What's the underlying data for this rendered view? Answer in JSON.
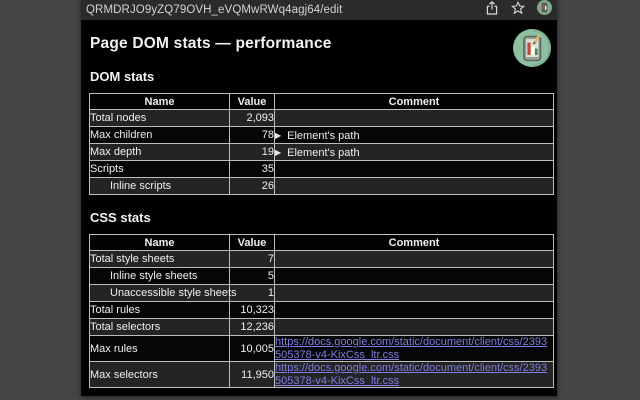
{
  "browser": {
    "url_bar": {
      "url": "QRMDRJO9yZQ79OVH_eVQMwRWq4agj64/edit",
      "icons": [
        "share-icon",
        "star-icon",
        "extension-icon"
      ]
    }
  },
  "page": {
    "title": "Page DOM stats — performance",
    "sections": [
      {
        "heading": "DOM stats",
        "table": {
          "headers": [
            "Name",
            "Value",
            "Comment"
          ],
          "rows": [
            {
              "name": "Total nodes",
              "value": "2,093",
              "indent": false,
              "comment": {
                "type": "none"
              }
            },
            {
              "name": "Max children",
              "value": "78",
              "indent": false,
              "comment": {
                "type": "details",
                "label": "Element's path"
              }
            },
            {
              "name": "Max depth",
              "value": "19",
              "indent": false,
              "comment": {
                "type": "details",
                "label": "Element's path"
              }
            },
            {
              "name": "Scripts",
              "value": "35",
              "indent": false,
              "comment": {
                "type": "none"
              }
            },
            {
              "name": "Inline scripts",
              "value": "26",
              "indent": true,
              "comment": {
                "type": "none"
              }
            }
          ]
        }
      },
      {
        "heading": "CSS stats",
        "table": {
          "headers": [
            "Name",
            "Value",
            "Comment"
          ],
          "rows": [
            {
              "name": "Total style sheets",
              "value": "7",
              "indent": false,
              "comment": {
                "type": "none"
              }
            },
            {
              "name": "Inline style sheets",
              "value": "5",
              "indent": true,
              "comment": {
                "type": "none"
              }
            },
            {
              "name": "Unaccessible style sheets",
              "value": "1",
              "indent": true,
              "comment": {
                "type": "none"
              }
            },
            {
              "name": "Total rules",
              "value": "10,323",
              "indent": false,
              "comment": {
                "type": "none"
              }
            },
            {
              "name": "Total selectors",
              "value": "12,236",
              "indent": false,
              "comment": {
                "type": "none"
              }
            },
            {
              "name": "Max rules",
              "value": "10,005",
              "indent": false,
              "comment": {
                "type": "link",
                "text": "https://docs.google.com/static/document/client/css/2393505378-v4-KixCss_ltr.css"
              }
            },
            {
              "name": "Max selectors",
              "value": "11,950",
              "indent": false,
              "comment": {
                "type": "link",
                "text": "https://docs.google.com/static/document/client/css/2393505378-v4-KixCss_ltr.css"
              }
            }
          ]
        }
      }
    ]
  },
  "colors": {
    "frame_gray": "#454545",
    "urlbar_bg": "#2b2b2b",
    "page_bg": "#000000",
    "row_alt": "#242424",
    "table_border": "#bdbdbd",
    "link": "#7e7ee3",
    "avatar_green": "#8dc1a1",
    "bar_red": "#bc4a38",
    "bar_green": "#3e8e5a"
  }
}
